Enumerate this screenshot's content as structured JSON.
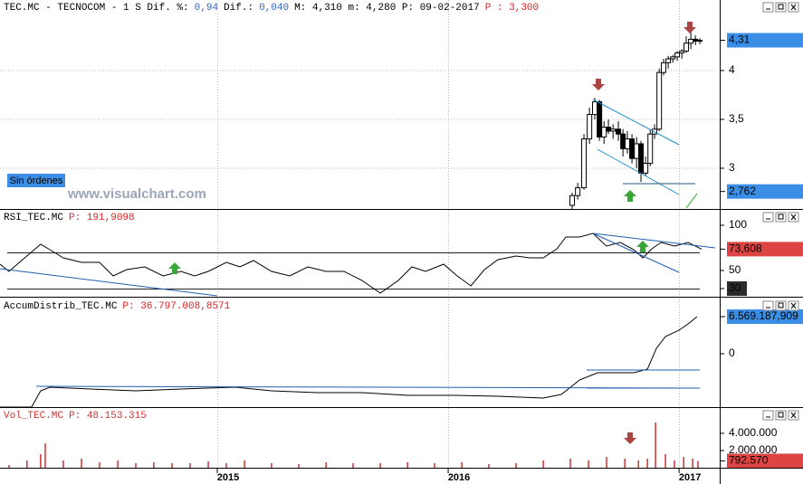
{
  "chart_data": [
    {
      "type": "candlestick",
      "header": [
        {
          "text": "TEC.MC - TECNOCOM -  1 S Dif. %:",
          "color": "#000000"
        },
        {
          "text": "0,94",
          "color": "#3366cc"
        },
        {
          "text": "Dif.:",
          "color": "#000000"
        },
        {
          "text": "0,040",
          "color": "#3366cc"
        },
        {
          "text": "M: 4,310 m: 4,280 P: 09-02-2017",
          "color": "#000000"
        },
        {
          "text": "P : 3,300",
          "color": "#dd2222"
        }
      ],
      "button": "Sin órdenes",
      "watermark": "www.visualchart.com",
      "x": [
        2016.537,
        2016.561,
        2016.588,
        2016.612,
        2016.635,
        2016.655,
        2016.675,
        2016.694,
        2016.714,
        2016.737,
        2016.757,
        2016.776,
        2016.796,
        2016.816,
        2016.835,
        2016.855,
        2016.875,
        2016.894,
        2016.914,
        2016.933,
        2016.953,
        2016.973,
        2016.992,
        2017.012,
        2017.031,
        2017.051,
        2017.071,
        2017.09
      ],
      "open": [
        2.62,
        2.72,
        2.8,
        3.3,
        3.55,
        3.68,
        3.32,
        3.42,
        3.38,
        3.4,
        3.35,
        3.2,
        3.3,
        3.1,
        3.25,
        2.95,
        3.05,
        3.35,
        3.4,
        3.98,
        4.08,
        4.12,
        4.14,
        4.18,
        4.2,
        4.28,
        4.32,
        4.3
      ],
      "high": [
        2.75,
        2.85,
        3.35,
        3.62,
        3.72,
        3.7,
        3.48,
        3.5,
        3.45,
        3.48,
        3.4,
        3.38,
        3.35,
        3.32,
        3.28,
        3.12,
        3.4,
        3.45,
        4.02,
        4.12,
        4.15,
        4.16,
        4.2,
        4.22,
        4.35,
        4.4,
        4.36,
        4.33
      ],
      "low": [
        2.58,
        2.68,
        2.78,
        3.25,
        3.5,
        3.28,
        3.25,
        3.35,
        3.3,
        3.28,
        3.12,
        3.15,
        3.05,
        3.0,
        2.86,
        2.92,
        3.02,
        3.3,
        3.38,
        3.95,
        4.02,
        4.08,
        4.1,
        4.12,
        4.18,
        4.22,
        4.26,
        4.27
      ],
      "close": [
        2.72,
        2.8,
        3.3,
        3.55,
        3.68,
        3.32,
        3.42,
        3.38,
        3.4,
        3.35,
        3.2,
        3.3,
        3.1,
        3.25,
        2.95,
        3.05,
        3.35,
        3.4,
        3.98,
        4.08,
        4.12,
        4.14,
        4.18,
        4.2,
        4.28,
        4.32,
        4.3,
        4.31
      ],
      "xlim": [
        2014.059,
        2017.176
      ],
      "xticks": [
        2015,
        2016,
        2017
      ],
      "ylim": [
        2.583,
        4.722
      ],
      "yticks": [
        4,
        {
          "value": 3.5,
          "label": "3,5"
        },
        3
      ],
      "grid": true,
      "price_labels": [
        {
          "value": 4.31,
          "label": "4,31",
          "color": "#3a8ee6"
        },
        {
          "value": 2.762,
          "label": "2,762",
          "color": "#3a8ee6"
        }
      ]
    },
    {
      "type": "line",
      "title": "RSI_TEC.MC",
      "subtitle": "P: 191,9098",
      "color": "#000000",
      "x": [
        2014.059,
        2014.098,
        2014.157,
        2014.235,
        2014.275,
        2014.333,
        2014.412,
        2014.49,
        2014.549,
        2014.608,
        2014.686,
        2014.765,
        2014.843,
        2014.902,
        2014.961,
        2015.039,
        2015.098,
        2015.157,
        2015.235,
        2015.314,
        2015.392,
        2015.471,
        2015.549,
        2015.627,
        2015.706,
        2015.784,
        2015.843,
        2015.902,
        2015.98,
        2016.039,
        2016.098,
        2016.157,
        2016.216,
        2016.294,
        2016.353,
        2016.412,
        2016.471,
        2016.51,
        2016.569,
        2016.627,
        2016.686,
        2016.745,
        2016.804,
        2016.843,
        2016.882,
        2016.922,
        2016.98,
        2017.039,
        2017.098
      ],
      "values": [
        57,
        49,
        62,
        79,
        73,
        64,
        59,
        59,
        44,
        51,
        54,
        44,
        49,
        44,
        49,
        59,
        54,
        61,
        49,
        44,
        54,
        49,
        49,
        39,
        25,
        39,
        54,
        49,
        57,
        44,
        33,
        51,
        62,
        66,
        64,
        64,
        74,
        87,
        87,
        91,
        77,
        81,
        73,
        64,
        74,
        81,
        77,
        81,
        73.608
      ],
      "xlim": [
        2014.059,
        2017.176
      ],
      "xticks": [
        2015,
        2016,
        2017
      ],
      "ylim": [
        21,
        117
      ],
      "yticks": [
        100,
        50,
        30
      ],
      "levels": [
        70,
        30
      ],
      "price_labels": [
        {
          "value": 73.608,
          "label": "73,608",
          "color": "#dd4444"
        }
      ]
    },
    {
      "type": "line",
      "title": "AccumDistrib_TEC.MC",
      "subtitle": "P: 36.797.008,8571",
      "color": "#000000",
      "x": [
        2014.059,
        2014.196,
        2014.235,
        2014.275,
        2014.451,
        2014.647,
        2014.843,
        2015.078,
        2015.235,
        2015.431,
        2015.627,
        2015.824,
        2016.02,
        2016.216,
        2016.412,
        2016.49,
        2016.569,
        2016.647,
        2016.804,
        2016.863,
        2016.902,
        2016.941,
        2017.0,
        2017.039,
        2017.078
      ],
      "values": [
        -9453000,
        -9453000,
        -6569000,
        -5928000,
        -6249000,
        -6569000,
        -6249000,
        -5928000,
        -6569000,
        -6890000,
        -6890000,
        -7370000,
        -7370000,
        -7531000,
        -7851000,
        -7210000,
        -4647000,
        -3365000,
        -3365000,
        -2724000,
        961000,
        3044000,
        4166000,
        5287000,
        6569187.909
      ],
      "xlim": [
        2014.059,
        2017.176
      ],
      "xticks": [
        2015,
        2016,
        2017
      ],
      "ylim": [
        -9453000,
        9774000
      ],
      "yticks": [
        0
      ],
      "price_labels": [
        {
          "value": 6569187.909,
          "label": "6.569.187,909",
          "color": "#3a8ee6"
        }
      ]
    },
    {
      "type": "bar",
      "title": "Vol_TEC.MC",
      "subtitle": "P: 48.153.315",
      "color": "#cc3333",
      "x": [
        2014.098,
        2014.176,
        2014.235,
        2014.255,
        2014.333,
        2014.412,
        2014.49,
        2014.569,
        2014.647,
        2014.725,
        2014.804,
        2014.882,
        2014.961,
        2015.039,
        2015.118,
        2015.235,
        2015.353,
        2015.471,
        2015.588,
        2015.706,
        2015.824,
        2015.941,
        2016.059,
        2016.176,
        2016.294,
        2016.412,
        2016.529,
        2016.608,
        2016.686,
        2016.765,
        2016.824,
        2016.863,
        2016.898,
        2016.941,
        2016.98,
        2017.02,
        2017.059,
        2017.082
      ],
      "values": [
        316000,
        842000,
        1579000,
        2842000,
        842000,
        1053000,
        632000,
        842000,
        526000,
        632000,
        526000,
        526000,
        737000,
        526000,
        842000,
        526000,
        421000,
        632000,
        526000,
        526000,
        632000,
        526000,
        632000,
        421000,
        526000,
        842000,
        1053000,
        842000,
        1263000,
        1053000,
        842000,
        1053000,
        5263000,
        1579000,
        842000,
        1263000,
        1053000,
        792570
      ],
      "xlim": [
        2014.059,
        2017.176
      ],
      "xticks": [
        2015,
        2016,
        2017
      ],
      "ylim": [
        0,
        6947000
      ],
      "yticks": [
        {
          "value": 4000000,
          "label": "4.000.000"
        },
        {
          "value": 2000000,
          "label": "2.000.000"
        }
      ],
      "price_labels": [
        {
          "value": 792570,
          "label": "792.570",
          "color": "#dd4444"
        }
      ]
    }
  ]
}
